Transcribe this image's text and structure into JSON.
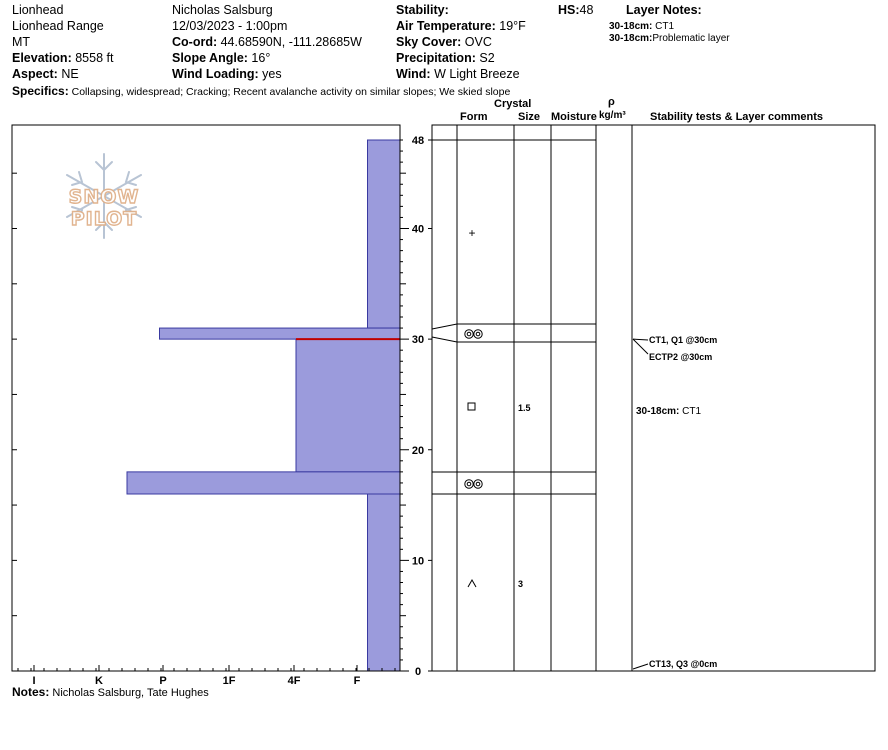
{
  "header": {
    "location": "Lionhead",
    "range": "Lionhead Range",
    "state": "MT",
    "elevation_label": "Elevation:",
    "elevation_value": "8558 ft",
    "aspect_label": "Aspect:",
    "aspect_value": "NE",
    "observer": "Nicholas Salsburg",
    "datetime": "12/03/2023 - 1:00pm",
    "coord_label": "Co-ord:",
    "coord_value": "44.68590N, -111.28685W",
    "slope_label": "Slope Angle:",
    "slope_value": "16°",
    "wind_loading_label": "Wind Loading:",
    "wind_loading_value": "yes",
    "stability_label": "Stability:",
    "air_temp_label": "Air Temperature:",
    "air_temp_value": "19°F",
    "sky_cover_label": "Sky Cover:",
    "sky_cover_value": "OVC",
    "precip_label": "Precipitation:",
    "precip_value": "S2",
    "wind_label": "Wind:",
    "wind_value": "W Light Breeze",
    "hs_label": "HS:",
    "hs_value": "48",
    "layer_notes_label": "Layer Notes:",
    "layer_notes": [
      {
        "range": "30-18cm:",
        "text": "CT1"
      },
      {
        "range": "30-18cm:",
        "text": "Problematic layer"
      }
    ],
    "specifics_label": "Specifics:",
    "specifics_value": "Collapsing, widespread; Cracking; Recent avalanche activity on similar slopes; We skied slope"
  },
  "logo_text": "SNOW PILOT",
  "columns": {
    "crystal": "Crystal",
    "form": "Form",
    "size": "Size",
    "moisture": "Moisture",
    "rho": "ρ",
    "density_unit": "kg/m³",
    "comments": "Stability tests & Layer comments"
  },
  "notes_label": "Notes:",
  "notes_value": "Nicholas Salsburg, Tate Hughes",
  "chart_data": {
    "type": "snow-profile",
    "depth_axis": {
      "min": 0,
      "max": 48,
      "ticks": [
        0,
        10,
        20,
        30,
        40,
        48
      ],
      "unit": "cm"
    },
    "hardness_axis": {
      "ticks": [
        "I",
        "K",
        "P",
        "1F",
        "4F",
        "F"
      ]
    },
    "hardness_layers": [
      {
        "top": 48,
        "bottom": 31,
        "hardness": 0.5
      },
      {
        "top": 31,
        "bottom": 30,
        "hardness": 3.7
      },
      {
        "top": 30,
        "bottom": 18,
        "hardness": 1.6
      },
      {
        "top": 18,
        "bottom": 16,
        "hardness": 4.2
      },
      {
        "top": 16,
        "bottom": 0,
        "hardness": 0.5
      }
    ],
    "red_line_depth": 30,
    "strat_layers": [
      {
        "top": 48,
        "bottom": 31,
        "form": "+",
        "size": ""
      },
      {
        "top": 31,
        "bottom": 29.7,
        "form": "surface-hoar",
        "size": ""
      },
      {
        "top": 29.7,
        "bottom": 18,
        "form": "□",
        "size": "1.5"
      },
      {
        "top": 18,
        "bottom": 16,
        "form": "surface-hoar",
        "size": ""
      },
      {
        "top": 16,
        "bottom": 0,
        "form": "^",
        "size": "3"
      }
    ],
    "stability_tests": [
      {
        "label": "CT1, Q1 @30cm",
        "depth": 30
      },
      {
        "label": "ECTP2 @30cm",
        "depth": 30
      },
      {
        "label": "CT13, Q3 @0cm",
        "depth": 0
      }
    ],
    "layer_comment": {
      "range": "30-18cm:",
      "text": "CT1"
    }
  }
}
